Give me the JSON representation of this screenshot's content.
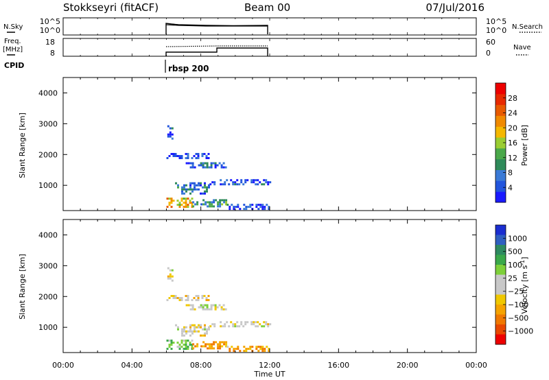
{
  "header": {
    "title": "Stokkseyri (fitACF)",
    "beam": "Beam 00",
    "date": "07/Jul/2016"
  },
  "nsky_panel": {
    "left_label": "N.Sky",
    "left_ticks": [
      "10^5",
      "10^0"
    ],
    "right_ticks": [
      "10^5",
      "10^0"
    ],
    "right_label": "N.Search"
  },
  "freq_panel": {
    "left_label_1": "Freq.",
    "left_label_2": "[MHz]",
    "left_ticks": [
      "18",
      "8"
    ],
    "right_ticks": [
      "60",
      "0"
    ],
    "right_label": "Nave"
  },
  "cpid_panel": {
    "label": "CPID",
    "value": "rbsp 200"
  },
  "time_axis": {
    "label": "Time UT",
    "ticks": [
      "00:00",
      "04:00",
      "08:00",
      "12:00",
      "16:00",
      "20:00",
      "00:00"
    ]
  },
  "chart_data": [
    {
      "type": "heatmap",
      "quantity": "Power",
      "xlabel": "Time UT",
      "ylabel": "Slant Range [km]",
      "xlim_hours": [
        0,
        24
      ],
      "ylim": [
        180,
        4500
      ],
      "yticks": [
        "1000",
        "2000",
        "3000",
        "4000"
      ],
      "data_extent_hours": [
        6,
        12
      ],
      "colorbar": {
        "label": "Power [dB]",
        "tick_labels": [
          "4",
          "8",
          "12",
          "16",
          "20",
          "24",
          "28"
        ],
        "colors": [
          "#1a1aff",
          "#2255dd",
          "#3a7ad6",
          "#2f8a5a",
          "#4aa84a",
          "#9acd32",
          "#f5b800",
          "#f08a00",
          "#e85a00",
          "#e82a00",
          "#ee0000"
        ]
      },
      "echo_regions": [
        {
          "t": [
            6.05,
            6.3
          ],
          "r": [
            2500,
            2950
          ],
          "value": 6
        },
        {
          "t": [
            6.0,
            8.5
          ],
          "r": [
            1850,
            2050
          ],
          "value": 6
        },
        {
          "t": [
            7.0,
            9.5
          ],
          "r": [
            1550,
            1750
          ],
          "value": 8
        },
        {
          "t": [
            8.5,
            12.0
          ],
          "r": [
            1050,
            1200
          ],
          "value": 6
        },
        {
          "t": [
            6.5,
            8.5
          ],
          "r": [
            700,
            1100
          ],
          "value": 9
        },
        {
          "t": [
            6.0,
            7.5
          ],
          "r": [
            300,
            600
          ],
          "value": 20
        },
        {
          "t": [
            7.5,
            9.5
          ],
          "r": [
            300,
            550
          ],
          "value": 12
        },
        {
          "t": [
            9.5,
            12.0
          ],
          "r": [
            200,
            400
          ],
          "value": 6
        }
      ]
    },
    {
      "type": "heatmap",
      "quantity": "Velocity",
      "xlabel": "Time UT",
      "ylabel": "Slant Range [km]",
      "xlim_hours": [
        0,
        24
      ],
      "ylim": [
        180,
        4500
      ],
      "yticks": [
        "1000",
        "2000",
        "3000",
        "4000"
      ],
      "data_extent_hours": [
        6,
        12
      ],
      "colorbar": {
        "label": "Velocity [m s-1]",
        "label_main": "Velocity",
        "label_unit_1": "[m s",
        "label_unit_sup": "-1",
        "label_unit_2": "]",
        "tick_labels": [
          "1000",
          "500",
          "100",
          "25",
          "−25",
          "−100",
          "−500",
          "−1000"
        ],
        "colors": [
          "#1b2ed0",
          "#2f5fc0",
          "#2e8a60",
          "#3aa84a",
          "#7ed03a",
          "#c8c8c8",
          "#c8c8c8",
          "#f0c800",
          "#f5a300",
          "#f07800",
          "#e84800",
          "#ee0000"
        ]
      },
      "echo_regions": [
        {
          "t": [
            6.05,
            6.3
          ],
          "r": [
            2500,
            2950
          ],
          "value": 0
        },
        {
          "t": [
            6.0,
            8.5
          ],
          "r": [
            1850,
            2050
          ],
          "value": -10
        },
        {
          "t": [
            7.0,
            9.5
          ],
          "r": [
            1550,
            1750
          ],
          "value": 5
        },
        {
          "t": [
            8.5,
            12.0
          ],
          "r": [
            1050,
            1200
          ],
          "value": 0
        },
        {
          "t": [
            6.5,
            8.5
          ],
          "r": [
            700,
            1100
          ],
          "value": 0
        },
        {
          "t": [
            6.0,
            7.5
          ],
          "r": [
            300,
            600
          ],
          "value": 80
        },
        {
          "t": [
            7.5,
            9.5
          ],
          "r": [
            300,
            550
          ],
          "value": -80
        },
        {
          "t": [
            9.5,
            12.0
          ],
          "r": [
            200,
            400
          ],
          "value": -80
        }
      ]
    }
  ]
}
